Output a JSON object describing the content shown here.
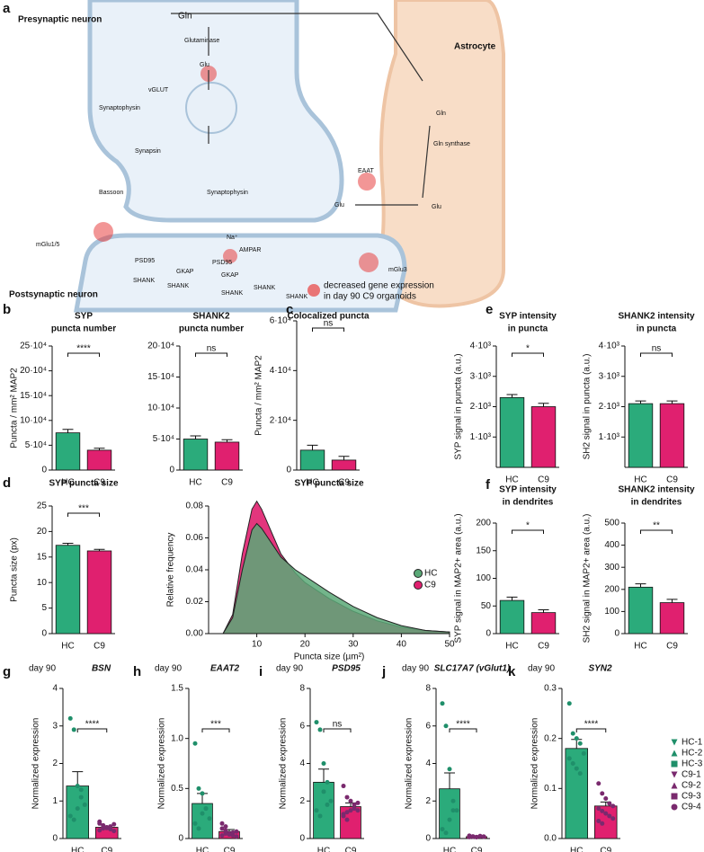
{
  "diagram": {
    "letter": "a",
    "labels": [
      "Presynaptic neuron",
      "Astrocyte",
      "Postsynaptic neuron",
      "Gln",
      "Glutaminase",
      "Glu",
      "vGLUT",
      "Synaptophysin",
      "Synapsin",
      "Bassoon",
      "Synaptophysin",
      "Glu",
      "EAAT",
      "Glu",
      "Gln synthase",
      "Gln",
      "mGlu1/5",
      "Na⁺",
      "AMPAR",
      "mGlu3",
      "PSD95",
      "GKAP",
      "SHANK",
      "PSD95",
      "GKAP",
      "SHANK",
      "SHANK",
      "SHANK",
      "SHANK",
      "decreased gene expression",
      "in day 90 C9 organoids"
    ]
  },
  "chart_data": [
    {
      "type": "bar",
      "letter": "b",
      "title": [
        "SYP",
        "puncta number"
      ],
      "ylabel": "Puncta / mm² MAP2",
      "categories": [
        "HC",
        "C9"
      ],
      "values": [
        75000,
        40000
      ],
      "errors": [
        7000,
        4000
      ],
      "colors": [
        "#2bab7b",
        "#e0206f"
      ],
      "ylim": [
        0,
        250000
      ],
      "yticks": [
        0,
        {
          "value": 50000,
          "label": "5·10⁴"
        },
        {
          "value": 100000,
          "label": "10·10⁴"
        },
        {
          "value": 150000,
          "label": "15·10⁴"
        },
        {
          "value": 200000,
          "label": "20·10⁴"
        },
        {
          "value": 250000,
          "label": "25·10⁴"
        }
      ],
      "significance": "****"
    },
    {
      "type": "bar",
      "title": [
        "SHANK2",
        "puncta number"
      ],
      "categories": [
        "HC",
        "C9"
      ],
      "values": [
        50000,
        45000
      ],
      "errors": [
        5000,
        4000
      ],
      "colors": [
        "#2bab7b",
        "#e0206f"
      ],
      "ylim": [
        0,
        200000
      ],
      "yticks": [
        0,
        {
          "value": 50000,
          "label": "5·10⁴"
        },
        {
          "value": 100000,
          "label": "10·10⁴"
        },
        {
          "value": 150000,
          "label": "15·10⁴"
        },
        {
          "value": 200000,
          "label": "20·10⁴"
        }
      ],
      "significance": "ns"
    },
    {
      "type": "bar",
      "letter": "c",
      "title": [
        "Colocalized puncta"
      ],
      "ylabel": "Puncta / mm² MAP2",
      "categories": [
        "HC",
        "C9"
      ],
      "values": [
        8000,
        4000
      ],
      "errors": [
        2000,
        1500
      ],
      "colors": [
        "#2bab7b",
        "#e0206f"
      ],
      "ylim": [
        0,
        60000
      ],
      "yticks": [
        0,
        {
          "value": 20000,
          "label": "2·10⁴"
        },
        {
          "value": 40000,
          "label": "4·10⁴"
        },
        {
          "value": 60000,
          "label": "6·10⁴"
        }
      ],
      "significance": "ns"
    },
    {
      "type": "bar",
      "letter": "e",
      "title": [
        "SYP intensity",
        "in puncta"
      ],
      "ylabel": "SYP signal  in puncta (a.u.)",
      "categories": [
        "HC",
        "C9"
      ],
      "values": [
        2300,
        2000
      ],
      "errors": [
        100,
        110
      ],
      "colors": [
        "#2bab7b",
        "#e0206f"
      ],
      "ylim": [
        0,
        4000
      ],
      "yticks": [
        {
          "value": 1000,
          "label": "1·10³"
        },
        {
          "value": 2000,
          "label": "2·10³"
        },
        {
          "value": 3000,
          "label": "3·10³"
        },
        {
          "value": 4000,
          "label": "4·10³"
        }
      ],
      "significance": "*"
    },
    {
      "type": "bar",
      "title": [
        "SHANK2 intensity",
        "in puncta"
      ],
      "ylabel": "SH2 signal  in puncta (a.u.)",
      "categories": [
        "HC",
        "C9"
      ],
      "values": [
        2100,
        2100
      ],
      "errors": [
        90,
        90
      ],
      "colors": [
        "#2bab7b",
        "#e0206f"
      ],
      "ylim": [
        0,
        4000
      ],
      "yticks": [
        {
          "value": 1000,
          "label": "1·10³"
        },
        {
          "value": 2000,
          "label": "2·10³"
        },
        {
          "value": 3000,
          "label": "3·10³"
        },
        {
          "value": 4000,
          "label": "4·10³"
        }
      ],
      "significance": "ns"
    },
    {
      "type": "bar",
      "letter": "d",
      "title": [
        "SYP puncta size"
      ],
      "ylabel": "Puncta size (px)",
      "categories": [
        "HC",
        "C9"
      ],
      "values": [
        17.3,
        16.2
      ],
      "errors": [
        0.4,
        0.3
      ],
      "colors": [
        "#2bab7b",
        "#e0206f"
      ],
      "ylim": [
        0,
        25
      ],
      "yticks": [
        0,
        5,
        10,
        15,
        20,
        25
      ],
      "significance": "***"
    },
    {
      "type": "area",
      "title": [
        "SYP puncta size"
      ],
      "xlabel": "Puncta size (µm²)",
      "ylabel": "Relative frequency",
      "x": [
        3,
        5,
        7,
        9,
        10,
        11,
        13,
        15,
        18,
        20,
        25,
        30,
        35,
        40,
        45,
        50
      ],
      "series": [
        {
          "name": "HC",
          "color": "#5aa877",
          "values": [
            0,
            0.01,
            0.04,
            0.065,
            0.069,
            0.066,
            0.057,
            0.048,
            0.04,
            0.036,
            0.026,
            0.017,
            0.01,
            0.005,
            0.002,
            0.001
          ]
        },
        {
          "name": "C9",
          "color": "#e0206f",
          "values": [
            0,
            0.012,
            0.05,
            0.078,
            0.083,
            0.078,
            0.064,
            0.05,
            0.038,
            0.032,
            0.022,
            0.014,
            0.008,
            0.004,
            0.002,
            0.001
          ]
        }
      ],
      "xlim": [
        0,
        50
      ],
      "xticks": [
        10,
        20,
        30,
        40,
        50
      ],
      "ylim": [
        0,
        0.08
      ],
      "yticks": [
        {
          "value": 0,
          "label": "0.00"
        },
        {
          "value": 0.02,
          "label": "0.02"
        },
        {
          "value": 0.04,
          "label": "0.04"
        },
        {
          "value": 0.06,
          "label": "0.06"
        },
        {
          "value": 0.08,
          "label": "0.08"
        }
      ],
      "legend": "right"
    },
    {
      "type": "bar",
      "letter": "f",
      "title": [
        "SYP intensity",
        "in dendrites"
      ],
      "ylabel": "SYP signal in MAP2+ area (a.u.)",
      "categories": [
        "HC",
        "C9"
      ],
      "values": [
        60,
        38
      ],
      "errors": [
        6,
        5
      ],
      "colors": [
        "#2bab7b",
        "#e0206f"
      ],
      "ylim": [
        0,
        200
      ],
      "yticks": [
        0,
        50,
        100,
        150,
        200
      ],
      "significance": "*"
    },
    {
      "type": "bar",
      "title": [
        "SHANK2 intensity",
        "in dendrites"
      ],
      "ylabel": "SH2 signal in MAP2+ area (a.u.)",
      "categories": [
        "HC",
        "C9"
      ],
      "values": [
        210,
        140
      ],
      "errors": [
        15,
        15
      ],
      "colors": [
        "#2bab7b",
        "#e0206f"
      ],
      "ylim": [
        0,
        500
      ],
      "yticks": [
        0,
        100,
        200,
        300,
        400,
        500
      ],
      "significance": "**"
    },
    {
      "type": "bar",
      "letter": "g",
      "subtitle": "day 90",
      "title": [
        "BSN"
      ],
      "ylabel": "Normalized expression",
      "categories": [
        "HC",
        "C9"
      ],
      "values": [
        1.4,
        0.3
      ],
      "errors": [
        0.38,
        0.03
      ],
      "colors": [
        "#2bab7b",
        "#e0206f"
      ],
      "ylim": [
        0,
        4
      ],
      "yticks": [
        0,
        1,
        2,
        3,
        4
      ],
      "significance": "****",
      "points": [
        [
          3.2,
          2.9,
          1.4,
          1.3,
          0.9,
          0.6,
          0.5,
          0.8,
          1.1
        ],
        [
          0.4,
          0.35,
          0.3,
          0.25,
          0.2,
          0.45,
          0.3,
          0.28,
          0.32,
          0.38,
          0.22,
          0.27
        ]
      ]
    },
    {
      "type": "bar",
      "letter": "h",
      "subtitle": "day 90",
      "title": [
        "EAAT2"
      ],
      "ylabel": "Normalized expression",
      "categories": [
        "HC",
        "C9"
      ],
      "values": [
        0.35,
        0.07
      ],
      "errors": [
        0.1,
        0.02
      ],
      "colors": [
        "#2bab7b",
        "#e0206f"
      ],
      "ylim": [
        0,
        1.5
      ],
      "yticks": [
        0,
        0.5,
        {
          "value": 1,
          "label": "1.0"
        },
        1.5
      ],
      "significance": "***",
      "points": [
        [
          0.95,
          0.5,
          0.45,
          0.3,
          0.2,
          0.15,
          0.1,
          0.25,
          0.3
        ],
        [
          0.15,
          0.12,
          0.05,
          0.03,
          0.02,
          0.1,
          0.08,
          0.04,
          0.06,
          0.07,
          0.03,
          0.05
        ]
      ]
    },
    {
      "type": "bar",
      "letter": "i",
      "subtitle": "day 90",
      "title": [
        "PSD95"
      ],
      "ylabel": "Normalized expression",
      "categories": [
        "HC",
        "C9"
      ],
      "values": [
        3.0,
        1.7
      ],
      "errors": [
        0.7,
        0.2
      ],
      "colors": [
        "#2bab7b",
        "#e0206f"
      ],
      "ylim": [
        0,
        8
      ],
      "yticks": [
        0,
        2,
        4,
        6,
        8
      ],
      "significance": "ns",
      "points": [
        [
          6.2,
          5.8,
          4.0,
          3.0,
          2.0,
          1.5,
          1.2,
          2.5,
          1.8
        ],
        [
          2.8,
          2.2,
          2.0,
          1.8,
          1.5,
          1.2,
          1.0,
          1.5,
          1.6,
          1.9,
          1.3,
          1.4
        ]
      ]
    },
    {
      "type": "bar",
      "letter": "j",
      "subtitle": "day 90",
      "title": [
        "SLC17A7 (vGlut1)"
      ],
      "ylabel": "Normalized expression",
      "categories": [
        "HC",
        "C9"
      ],
      "values": [
        2.65,
        0.1
      ],
      "errors": [
        0.85,
        0.02
      ],
      "colors": [
        "#2bab7b",
        "#e0206f"
      ],
      "ylim": [
        0,
        8
      ],
      "yticks": [
        0,
        2,
        4,
        6,
        8
      ],
      "significance": "****",
      "points": [
        [
          7.2,
          6.0,
          3.7,
          2.0,
          1.5,
          0.5,
          0.3,
          1.0,
          1.5
        ],
        [
          0.15,
          0.1,
          0.08,
          0.12,
          0.1,
          0.09,
          0.11,
          0.07,
          0.13,
          0.1,
          0.08,
          0.1
        ]
      ]
    },
    {
      "type": "bar",
      "letter": "k",
      "subtitle": "day 90",
      "title": [
        "SYN2"
      ],
      "ylabel": "Normalized expression",
      "categories": [
        "HC",
        "C9"
      ],
      "values": [
        0.18,
        0.065
      ],
      "errors": [
        0.018,
        0.008
      ],
      "colors": [
        "#2bab7b",
        "#e0206f"
      ],
      "ylim": [
        0,
        0.3
      ],
      "yticks": [
        {
          "value": 0,
          "label": "0.0"
        },
        0.1,
        0.2,
        0.3
      ],
      "significance": "****",
      "points": [
        [
          0.27,
          0.21,
          0.2,
          0.19,
          0.17,
          0.16,
          0.15,
          0.14,
          0.13
        ],
        [
          0.11,
          0.09,
          0.08,
          0.07,
          0.065,
          0.06,
          0.055,
          0.05,
          0.045,
          0.04,
          0.035,
          0.03
        ]
      ],
      "legend": [
        {
          "name": "HC-1",
          "marker": "triangle-down",
          "color": "#1f8f6a"
        },
        {
          "name": "HC-2",
          "marker": "triangle-up",
          "color": "#1f8f6a"
        },
        {
          "name": "HC-3",
          "marker": "square",
          "color": "#1f8f6a"
        },
        {
          "name": "C9-1",
          "marker": "triangle-down",
          "color": "#7a2a6e"
        },
        {
          "name": "C9-2",
          "marker": "triangle-up",
          "color": "#7a2a6e"
        },
        {
          "name": "C9-3",
          "marker": "square",
          "color": "#7a2a6e"
        },
        {
          "name": "C9-4",
          "marker": "circle",
          "color": "#7a2a6e"
        }
      ]
    }
  ]
}
